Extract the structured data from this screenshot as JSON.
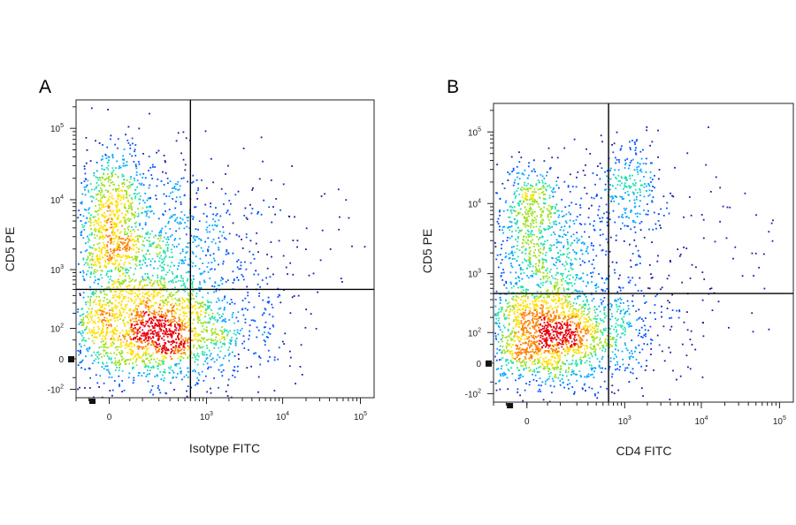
{
  "chart_data": [
    {
      "type": "scatter",
      "panel_label": "A",
      "xlabel": "Isotype FITC",
      "ylabel": "CD5 PE",
      "x_scale": "biexponential",
      "y_scale": "biexponential",
      "xlim": [
        -100,
        150000
      ],
      "ylim": [
        -150,
        250000
      ],
      "x_ticks": [
        {
          "value": 0,
          "base": "0",
          "exp": ""
        },
        {
          "value": 1000,
          "base": "10",
          "exp": "3"
        },
        {
          "value": 10000,
          "base": "10",
          "exp": "4"
        },
        {
          "value": 100000,
          "base": "10",
          "exp": "5"
        }
      ],
      "y_ticks": [
        {
          "value": -100,
          "base": "-10",
          "exp": "2"
        },
        {
          "value": 0,
          "base": "0",
          "exp": ""
        },
        {
          "value": 100,
          "base": "10",
          "exp": "2"
        },
        {
          "value": 1000,
          "base": "10",
          "exp": "3"
        },
        {
          "value": 10000,
          "base": "10",
          "exp": "4"
        },
        {
          "value": 100000,
          "base": "10",
          "exp": "5"
        }
      ],
      "quadrant_gate": {
        "x": 600,
        "y": 500
      },
      "populations": [
        {
          "x": 130,
          "y": 90,
          "sx": 0.17,
          "sy": 0.09,
          "n": 1900
        },
        {
          "x": 5,
          "y": 2200,
          "sx": 0.08,
          "sy": 0.11,
          "n": 520
        },
        {
          "x": 5,
          "y": 12000,
          "sx": 0.05,
          "sy": 0.1,
          "n": 320
        },
        {
          "x": 180,
          "y": 2200,
          "sx": 0.15,
          "sy": 0.16,
          "n": 650
        },
        {
          "x": 900,
          "y": 900,
          "sx": 0.17,
          "sy": 0.2,
          "n": 240
        }
      ],
      "gate_colors": [
        "#1a1aa8",
        "#0050ff",
        "#00a6ff",
        "#1fe0b0",
        "#9be020",
        "#ffe000",
        "#ff8000",
        "#e8000b"
      ],
      "grid": false,
      "legend": "none"
    },
    {
      "type": "scatter",
      "panel_label": "B",
      "xlabel": "CD4 FITC",
      "ylabel": "CD5 PE",
      "x_scale": "biexponential",
      "y_scale": "biexponential",
      "xlim": [
        -100,
        150000
      ],
      "ylim": [
        -150,
        250000
      ],
      "x_ticks": [
        {
          "value": 0,
          "base": "0",
          "exp": ""
        },
        {
          "value": 1000,
          "base": "10",
          "exp": "3"
        },
        {
          "value": 10000,
          "base": "10",
          "exp": "4"
        },
        {
          "value": 100000,
          "base": "10",
          "exp": "5"
        }
      ],
      "y_ticks": [
        {
          "value": -100,
          "base": "-10",
          "exp": "2"
        },
        {
          "value": 0,
          "base": "0",
          "exp": ""
        },
        {
          "value": 100,
          "base": "10",
          "exp": "2"
        },
        {
          "value": 1000,
          "base": "10",
          "exp": "3"
        },
        {
          "value": 10000,
          "base": "10",
          "exp": "4"
        },
        {
          "value": 100000,
          "base": "10",
          "exp": "5"
        }
      ],
      "quadrant_gate": {
        "x": 600,
        "y": 500
      },
      "populations": [
        {
          "x": 60,
          "y": 90,
          "sx": 0.14,
          "sy": 0.09,
          "n": 1800
        },
        {
          "x": 20,
          "y": 2000,
          "sx": 0.1,
          "sy": 0.12,
          "n": 700
        },
        {
          "x": 5,
          "y": 13000,
          "sx": 0.05,
          "sy": 0.07,
          "n": 220
        },
        {
          "x": 1100,
          "y": 17000,
          "sx": 0.06,
          "sy": 0.08,
          "n": 260
        },
        {
          "x": 1200,
          "y": 500,
          "sx": 0.17,
          "sy": 0.22,
          "n": 230
        }
      ],
      "gate_colors": [
        "#1a1aa8",
        "#0050ff",
        "#00a6ff",
        "#1fe0b0",
        "#9be020",
        "#ffe000",
        "#ff8000",
        "#e8000b"
      ],
      "grid": false,
      "legend": "none"
    }
  ]
}
